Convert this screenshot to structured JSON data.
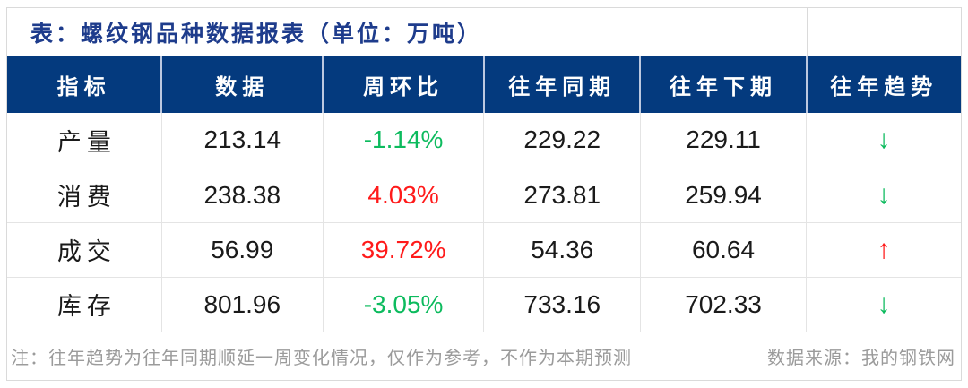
{
  "title": "表：螺纹钢品种数据报表（单位：万吨）",
  "colors": {
    "header_bg": "#043a7e",
    "header_divider": "#bcc8e0",
    "title_text": "#1e3c8c",
    "body_border": "#e4e4e4",
    "note_gray": "#9b9b9b",
    "green": "#0dbb5e",
    "red": "#ff1a1a"
  },
  "table": {
    "headers": [
      "指标",
      "数据",
      "周环比",
      "往年同期",
      "往年下期",
      "往年趋势"
    ],
    "rows": [
      {
        "indicator": "产量",
        "value": "213.14",
        "wow": "-1.14%",
        "wow_color": "green",
        "prev_same": "229.22",
        "prev_next": "229.11",
        "trend": "down",
        "trend_glyph": "↓",
        "trend_color": "green"
      },
      {
        "indicator": "消费",
        "value": "238.38",
        "wow": "4.03%",
        "wow_color": "red",
        "prev_same": "273.81",
        "prev_next": "259.94",
        "trend": "down",
        "trend_glyph": "↓",
        "trend_color": "green"
      },
      {
        "indicator": "成交",
        "value": "56.99",
        "wow": "39.72%",
        "wow_color": "red",
        "prev_same": "54.36",
        "prev_next": "60.64",
        "trend": "up",
        "trend_glyph": "↑",
        "trend_color": "red"
      },
      {
        "indicator": "库存",
        "value": "801.96",
        "wow": "-3.05%",
        "wow_color": "green",
        "prev_same": "733.16",
        "prev_next": "702.33",
        "trend": "down",
        "trend_glyph": "↓",
        "trend_color": "green"
      }
    ]
  },
  "footer": {
    "note": "注：往年趋势为往年同期顺延一周变化情况，仅作为参考，不作为本期预测",
    "source": "数据来源：我的钢铁网"
  },
  "chart_data": {
    "type": "table",
    "title": "表：螺纹钢品种数据报表（单位：万吨）",
    "unit": "万吨",
    "columns": [
      "指标",
      "数据",
      "周环比",
      "往年同期",
      "往年下期",
      "往年趋势"
    ],
    "rows": [
      [
        "产量",
        213.14,
        "-1.14%",
        229.22,
        229.11,
        "下降↓"
      ],
      [
        "消费",
        238.38,
        "4.03%",
        273.81,
        259.94,
        "下降↓"
      ],
      [
        "成交",
        56.99,
        "39.72%",
        54.36,
        60.64,
        "上升↑"
      ],
      [
        "库存",
        801.96,
        "-3.05%",
        733.16,
        702.33,
        "下降↓"
      ]
    ]
  }
}
